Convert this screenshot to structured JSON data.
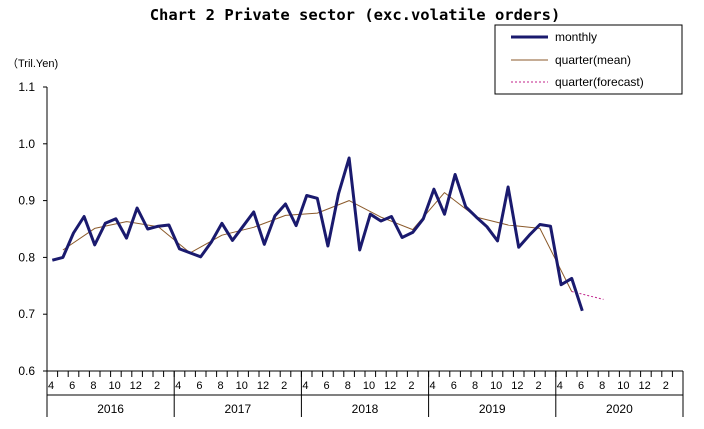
{
  "chart_data": {
    "type": "line",
    "title": "Chart 2 Private sector (exc.volatile orders)",
    "unit_label": "（Tril.Yen)",
    "ylim": [
      0.6,
      1.1
    ],
    "y_ticks": [
      "0.6",
      "0.7",
      "0.8",
      "0.9",
      "1.0",
      "1.1"
    ],
    "grid": false,
    "legend_position": "top-right",
    "month_labels": [
      "4",
      "6",
      "8",
      "10",
      "12",
      "2",
      "4",
      "6",
      "8",
      "10",
      "12",
      "2",
      "4",
      "6",
      "8",
      "10",
      "12",
      "2",
      "4",
      "6",
      "8",
      "10",
      "12",
      "2",
      "4",
      "6",
      "8",
      "10",
      "12",
      "2"
    ],
    "year_labels": [
      "2016",
      "2017",
      "2018",
      "2019",
      "2020"
    ],
    "x": [
      "2016-04",
      "2016-05",
      "2016-06",
      "2016-07",
      "2016-08",
      "2016-09",
      "2016-10",
      "2016-11",
      "2016-12",
      "2017-01",
      "2017-02",
      "2017-03",
      "2017-04",
      "2017-05",
      "2017-06",
      "2017-07",
      "2017-08",
      "2017-09",
      "2017-10",
      "2017-11",
      "2017-12",
      "2018-01",
      "2018-02",
      "2018-03",
      "2018-04",
      "2018-05",
      "2018-06",
      "2018-07",
      "2018-08",
      "2018-09",
      "2018-10",
      "2018-11",
      "2018-12",
      "2019-01",
      "2019-02",
      "2019-03",
      "2019-04",
      "2019-05",
      "2019-06",
      "2019-07",
      "2019-08",
      "2019-09",
      "2019-10",
      "2019-11",
      "2019-12",
      "2020-01",
      "2020-02",
      "2020-03",
      "2020-04",
      "2020-05",
      "2020-06",
      "2020-07",
      "2020-08",
      "2020-09",
      "2020-10",
      "2020-11",
      "2020-12",
      "2021-01",
      "2021-02",
      "2021-03"
    ],
    "series": [
      {
        "name": "monthly",
        "color": "#1a1a6e",
        "x": [
          "2016-04",
          "2016-05",
          "2016-06",
          "2016-07",
          "2016-08",
          "2016-09",
          "2016-10",
          "2016-11",
          "2016-12",
          "2017-01",
          "2017-02",
          "2017-03",
          "2017-04",
          "2017-05",
          "2017-06",
          "2017-07",
          "2017-08",
          "2017-09",
          "2017-10",
          "2017-11",
          "2017-12",
          "2018-01",
          "2018-02",
          "2018-03",
          "2018-04",
          "2018-05",
          "2018-06",
          "2018-07",
          "2018-08",
          "2018-09",
          "2018-10",
          "2018-11",
          "2018-12",
          "2019-01",
          "2019-02",
          "2019-03",
          "2019-04",
          "2019-05",
          "2019-06",
          "2019-07",
          "2019-08",
          "2019-09",
          "2019-10",
          "2019-11",
          "2019-12",
          "2020-01",
          "2020-02",
          "2020-03",
          "2020-04",
          "2020-05",
          "2020-06"
        ],
        "values": [
          0.795,
          0.8,
          0.843,
          0.872,
          0.822,
          0.86,
          0.868,
          0.834,
          0.887,
          0.85,
          0.855,
          0.857,
          0.815,
          0.808,
          0.801,
          0.827,
          0.86,
          0.83,
          0.855,
          0.88,
          0.823,
          0.873,
          0.894,
          0.856,
          0.909,
          0.904,
          0.82,
          0.912,
          0.975,
          0.813,
          0.876,
          0.864,
          0.872,
          0.835,
          0.844,
          0.868,
          0.92,
          0.876,
          0.946,
          0.889,
          0.871,
          0.854,
          0.829,
          0.924,
          0.818,
          0.839,
          0.858,
          0.855,
          0.752,
          0.763,
          0.706
        ]
      },
      {
        "name": "quarter(mean)",
        "color": "#8b5a2b",
        "x": [
          "2016-05",
          "2016-08",
          "2016-11",
          "2017-02",
          "2017-05",
          "2017-08",
          "2017-11",
          "2018-02",
          "2018-05",
          "2018-08",
          "2018-11",
          "2019-02",
          "2019-05",
          "2019-08",
          "2019-11",
          "2020-02",
          "2020-05"
        ],
        "values": [
          0.813,
          0.851,
          0.863,
          0.854,
          0.808,
          0.839,
          0.853,
          0.874,
          0.878,
          0.9,
          0.871,
          0.849,
          0.914,
          0.871,
          0.857,
          0.851,
          0.74
        ]
      },
      {
        "name": "quarter(forecast)",
        "color": "#c0208a",
        "x": [
          "2020-05",
          "2020-08"
        ],
        "values": [
          0.74,
          0.726
        ]
      }
    ]
  }
}
